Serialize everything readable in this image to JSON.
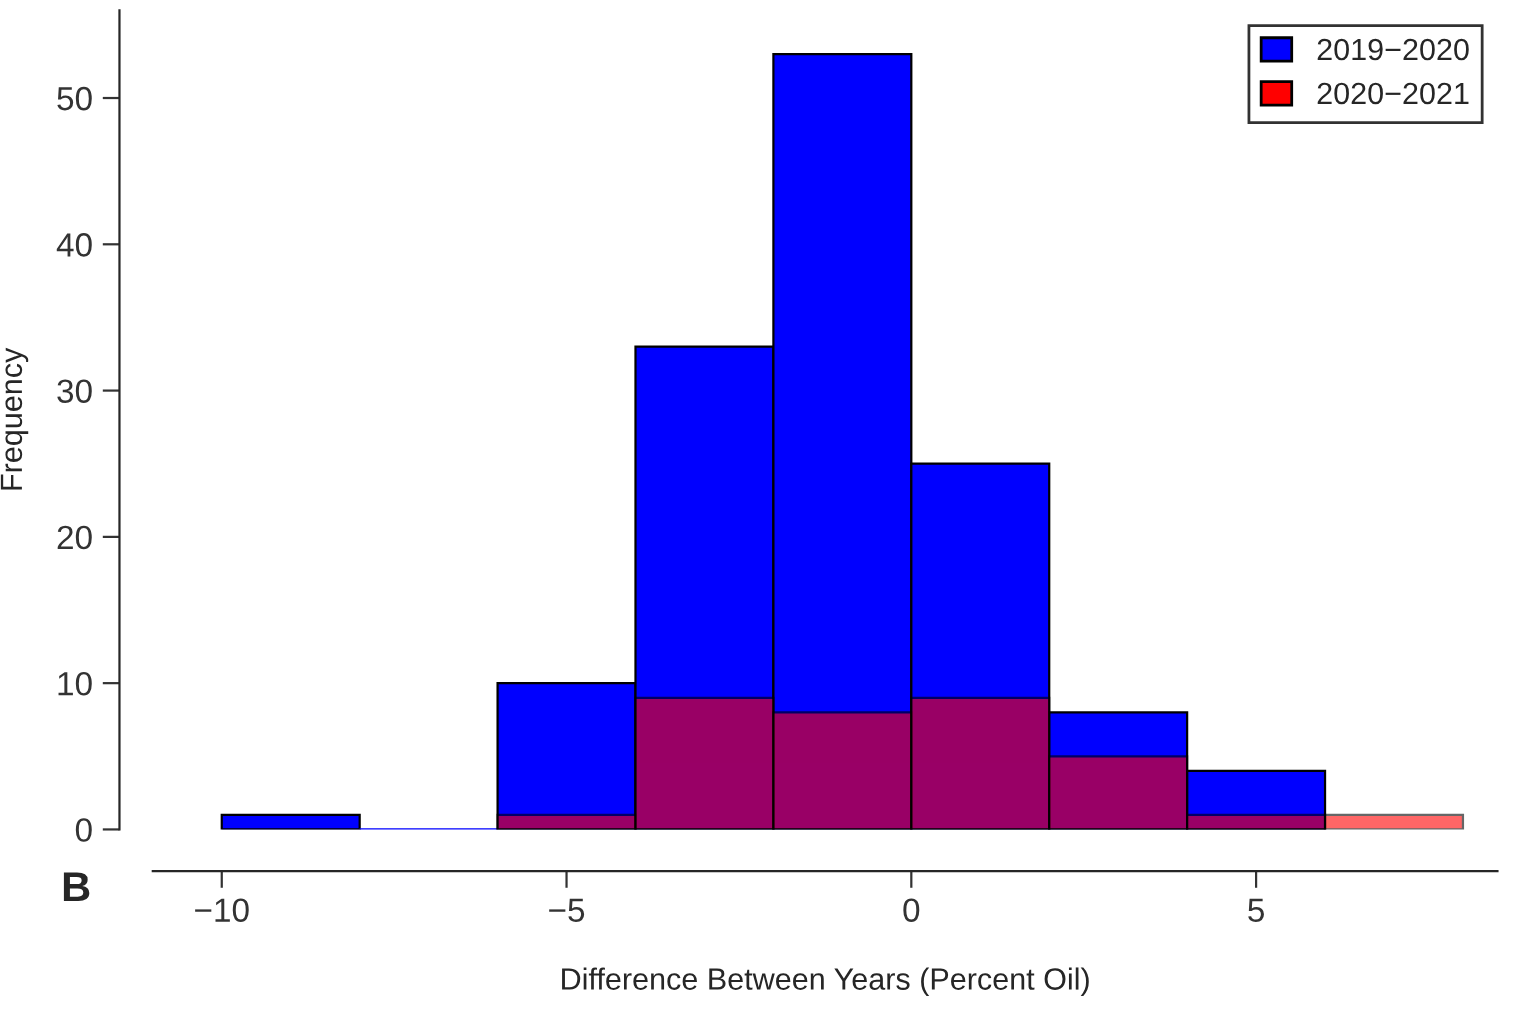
{
  "chart_data": {
    "type": "histogram",
    "xlabel": "Difference Between Years (Percent Oil)",
    "ylabel": "Frequency",
    "bins": [
      -10,
      -8,
      -6,
      -4,
      -2,
      0,
      2,
      4,
      6,
      8
    ],
    "series": [
      {
        "name": "2019−2020",
        "color": "#0000ff",
        "values": [
          1,
          0,
          10,
          33,
          53,
          25,
          8,
          4,
          null
        ]
      },
      {
        "name": "2020−2021",
        "color": "#ff0000",
        "values": [
          null,
          null,
          1,
          9,
          8,
          9,
          5,
          1,
          1
        ]
      }
    ],
    "xlim": [
      -11,
      8.5
    ],
    "xticks": [
      {
        "value": -10,
        "label": "−10"
      },
      {
        "value": -5,
        "label": "−5"
      },
      0,
      5
    ],
    "ylim": [
      0,
      56
    ],
    "yticks": [
      0,
      10,
      20,
      30,
      40,
      50
    ],
    "grid": false,
    "legend": "top right",
    "annotations": [
      "B"
    ]
  }
}
